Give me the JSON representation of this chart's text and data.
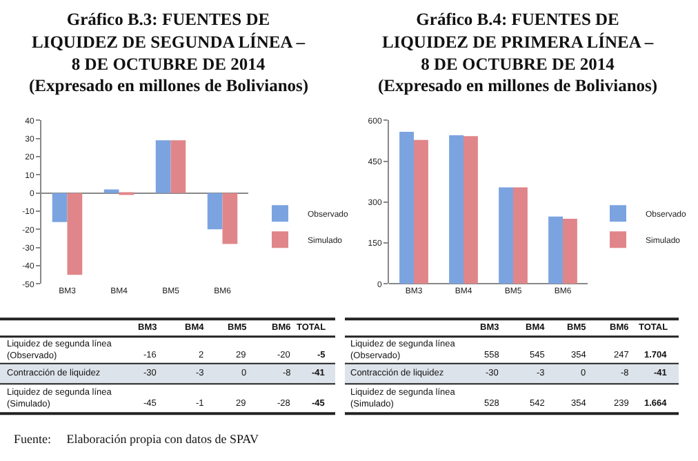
{
  "chart_data": [
    {
      "type": "bar",
      "title": "Gráfico B.3: FUENTES DE LIQUIDEZ DE SEGUNDA LÍNEA – 8 DE OCTUBRE DE 2014",
      "subtitle": "(Expresado en millones de Bolivianos)",
      "categories": [
        "BM3",
        "BM4",
        "BM5",
        "BM6"
      ],
      "series": [
        {
          "name": "Observado",
          "color": "#7ba3e0",
          "values": [
            -16,
            2,
            29,
            -20
          ]
        },
        {
          "name": "Simulado",
          "color": "#e0868a",
          "values": [
            -45,
            -1,
            29,
            -28
          ]
        }
      ],
      "ylim": [
        -50,
        40
      ],
      "yticks": [
        -50,
        -40,
        -30,
        -20,
        -10,
        0,
        10,
        20,
        30,
        40
      ],
      "legend": "right"
    },
    {
      "type": "bar",
      "title": "Gráfico B.4: FUENTES DE LIQUIDEZ DE PRIMERA LÍNEA – 8 DE OCTUBRE DE 2014",
      "subtitle": "(Expresado en millones de Bolivianos)",
      "categories": [
        "BM3",
        "BM4",
        "BM5",
        "BM6"
      ],
      "series": [
        {
          "name": "Observado",
          "color": "#7ba3e0",
          "values": [
            558,
            545,
            354,
            247
          ]
        },
        {
          "name": "Simulado",
          "color": "#e0868a",
          "values": [
            528,
            542,
            354,
            239
          ]
        }
      ],
      "ylim": [
        0,
        600
      ],
      "yticks": [
        0,
        150,
        300,
        450,
        600
      ],
      "legend": "right"
    },
    {
      "type": "other",
      "data_labels": true,
      "categories": [
        "BM3",
        "BM4",
        "BM5",
        "BM6",
        "TOTAL"
      ],
      "series": [
        {
          "name": "Liquidez de segunda línea\n(Observado)",
          "values": [
            -16,
            2,
            29,
            -20,
            -5
          ]
        },
        {
          "name": "Contracción de liquidez",
          "values": [
            -30,
            -3,
            0,
            -8,
            -41
          ]
        },
        {
          "name": "Liquidez de segunda línea\n(Simulado)",
          "values": [
            -45,
            -1,
            29,
            -28,
            -45
          ]
        }
      ],
      "annotations": [
        "Fuente:     Elaboración propia con datos de SPAV"
      ]
    },
    {
      "type": "other",
      "data_labels": true,
      "categories": [
        "BM3",
        "BM4",
        "BM5",
        "BM6",
        "TOTAL"
      ],
      "series": [
        {
          "name": "Liquidez de segunda línea\n(Observado)",
          "values": [
            558,
            545,
            354,
            247,
            1704
          ],
          "value_labels": [
            "558",
            "545",
            "354",
            "247",
            "1.704"
          ]
        },
        {
          "name": "Contracción de liquidez",
          "values": [
            -30,
            -3,
            0,
            -8,
            -41
          ]
        },
        {
          "name": "Liquidez de segunda línea\n(Simulado)",
          "values": [
            528,
            542,
            354,
            239,
            1664
          ],
          "value_labels": [
            "528",
            "542",
            "354",
            "239",
            "1.664"
          ]
        }
      ]
    }
  ]
}
